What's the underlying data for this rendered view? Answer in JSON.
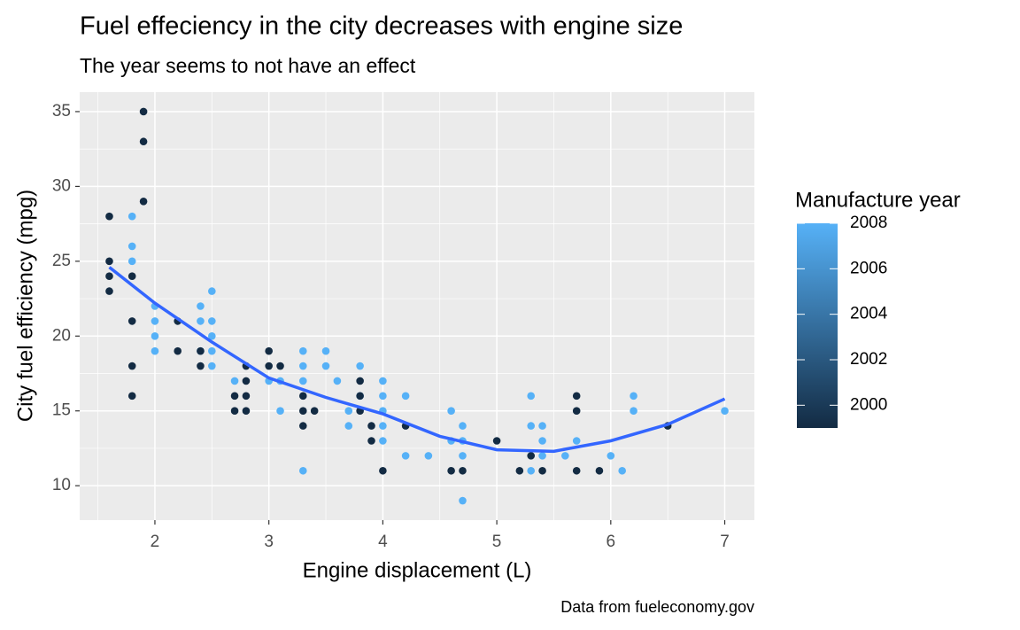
{
  "chart_data": {
    "type": "scatter",
    "title": "Fuel effeciency in the city decreases with engine size",
    "subtitle": "The year seems to not have an effect",
    "x_label": "Engine displacement (L)",
    "y_label": "City fuel efficiency (mpg)",
    "caption": "Data from fueleconomy.gov",
    "xlim": [
      1.34,
      7.26
    ],
    "ylim": [
      7.7,
      36.3
    ],
    "xticks": [
      2,
      3,
      4,
      5,
      6,
      7
    ],
    "yticks": [
      10,
      15,
      20,
      25,
      30,
      35
    ],
    "xminor": [
      1.5,
      2.5,
      3.5,
      4.5,
      5.5,
      6.5
    ],
    "yminor": [
      12.5,
      17.5,
      22.5,
      27.5,
      32.5
    ],
    "grid": true,
    "x": [
      1.6,
      1.6,
      1.6,
      1.6,
      1.8,
      1.8,
      1.8,
      1.8,
      1.8,
      1.8,
      1.8,
      1.9,
      1.9,
      1.9,
      2.0,
      2.0,
      2.0,
      2.0,
      2.2,
      2.2,
      2.4,
      2.4,
      2.4,
      2.4,
      2.4,
      2.5,
      2.5,
      2.5,
      2.5,
      2.5,
      2.7,
      2.7,
      2.7,
      2.8,
      2.8,
      2.8,
      2.8,
      3.0,
      3.0,
      3.0,
      3.1,
      3.1,
      3.1,
      3.3,
      3.3,
      3.3,
      3.3,
      3.3,
      3.3,
      3.3,
      3.4,
      3.5,
      3.5,
      3.6,
      3.7,
      3.7,
      3.8,
      3.8,
      3.8,
      3.8,
      3.8,
      3.9,
      3.9,
      4.0,
      4.0,
      4.0,
      4.0,
      4.0,
      4.0,
      4.2,
      4.2,
      4.2,
      4.4,
      4.6,
      4.6,
      4.6,
      4.7,
      4.7,
      4.7,
      4.7,
      4.7,
      5.0,
      5.2,
      5.3,
      5.3,
      5.3,
      5.3,
      5.4,
      5.4,
      5.4,
      5.4,
      5.6,
      5.7,
      5.7,
      5.7,
      5.7,
      5.9,
      6.0,
      6.1,
      6.2,
      6.2,
      6.5,
      7.0
    ],
    "y": [
      28,
      25,
      24,
      23,
      28,
      26,
      25,
      24,
      21,
      18,
      16,
      35,
      33,
      29,
      22,
      21,
      20,
      19,
      21,
      19,
      22,
      21,
      19,
      19,
      18,
      23,
      21,
      20,
      19,
      18,
      17,
      16,
      15,
      18,
      17,
      16,
      15,
      19,
      18,
      17,
      18,
      17,
      15,
      19,
      18,
      17,
      11,
      16,
      15,
      14,
      15,
      19,
      18,
      17,
      15,
      14,
      18,
      16,
      17,
      16,
      15,
      14,
      13,
      17,
      16,
      15,
      14,
      13,
      11,
      16,
      12,
      14,
      12,
      15,
      13,
      11,
      14,
      13,
      12,
      9,
      11,
      13,
      11,
      16,
      14,
      11,
      12,
      14,
      13,
      12,
      11,
      12,
      16,
      15,
      11,
      13,
      11,
      12,
      11,
      16,
      15,
      14,
      15
    ],
    "year": [
      1999,
      1999,
      1999,
      1999,
      2008,
      2008,
      2008,
      1999,
      1999,
      1999,
      1999,
      1999,
      1999,
      1999,
      2008,
      2008,
      2008,
      2008,
      1999,
      1999,
      2008,
      2008,
      2008,
      1999,
      1999,
      2008,
      2008,
      2008,
      2008,
      2008,
      2008,
      1999,
      1999,
      1999,
      1999,
      1999,
      1999,
      1999,
      1999,
      2008,
      1999,
      2008,
      2008,
      2008,
      2008,
      2008,
      2008,
      1999,
      1999,
      1999,
      1999,
      2008,
      2008,
      2008,
      2008,
      2008,
      2008,
      2008,
      1999,
      1999,
      1999,
      1999,
      1999,
      2008,
      2008,
      2008,
      2008,
      2008,
      1999,
      2008,
      2008,
      1999,
      2008,
      2008,
      2008,
      1999,
      2008,
      2008,
      2008,
      2008,
      1999,
      1999,
      1999,
      2008,
      2008,
      2008,
      1999,
      2008,
      2008,
      2008,
      1999,
      2008,
      1999,
      1999,
      1999,
      2008,
      1999,
      2008,
      2008,
      2008,
      2008,
      1999,
      2008
    ],
    "smooth": {
      "x": [
        1.6,
        2.0,
        2.5,
        3.0,
        3.5,
        4.0,
        4.5,
        5.0,
        5.5,
        6.0,
        6.5,
        7.0
      ],
      "y": [
        24.6,
        22.2,
        19.6,
        17.2,
        15.9,
        14.8,
        13.3,
        12.4,
        12.3,
        13.0,
        14.1,
        15.8
      ],
      "color": "#3366FF"
    },
    "colorbar": {
      "title": "Manufacture year",
      "limits": [
        1999,
        2008
      ],
      "low": "#132B43",
      "high": "#56B1F7",
      "ticks": [
        2000,
        2002,
        2004,
        2006,
        2008
      ]
    }
  }
}
